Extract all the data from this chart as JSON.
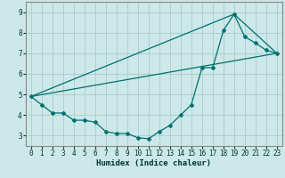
{
  "xlabel": "Humidex (Indice chaleur)",
  "background_color": "#cce8e8",
  "grid_color": "#aacccc",
  "line_color": "#007070",
  "border_color": "#888888",
  "xlim": [
    -0.5,
    23.5
  ],
  "ylim": [
    2.5,
    9.5
  ],
  "xticks": [
    0,
    1,
    2,
    3,
    4,
    5,
    6,
    7,
    8,
    9,
    10,
    11,
    12,
    13,
    14,
    15,
    16,
    17,
    18,
    19,
    20,
    21,
    22,
    23
  ],
  "yticks": [
    3,
    4,
    5,
    6,
    7,
    8,
    9
  ],
  "line1_x": [
    0,
    1,
    2,
    3,
    4,
    5,
    6,
    7,
    8,
    9,
    10,
    11,
    12,
    13,
    14,
    15,
    16,
    17,
    18,
    19,
    20,
    21,
    22,
    23
  ],
  "line1_y": [
    4.9,
    4.5,
    4.1,
    4.1,
    3.75,
    3.75,
    3.65,
    3.2,
    3.1,
    3.1,
    2.9,
    2.85,
    3.2,
    3.5,
    4.0,
    4.5,
    6.3,
    6.3,
    8.1,
    8.9,
    7.8,
    7.5,
    7.15,
    7.0
  ],
  "line2_x": [
    0,
    23
  ],
  "line2_y": [
    4.9,
    7.0
  ],
  "line3_x": [
    0,
    19,
    23
  ],
  "line3_y": [
    4.9,
    8.9,
    7.0
  ],
  "tick_fontsize": 5.5,
  "xlabel_fontsize": 6.5
}
